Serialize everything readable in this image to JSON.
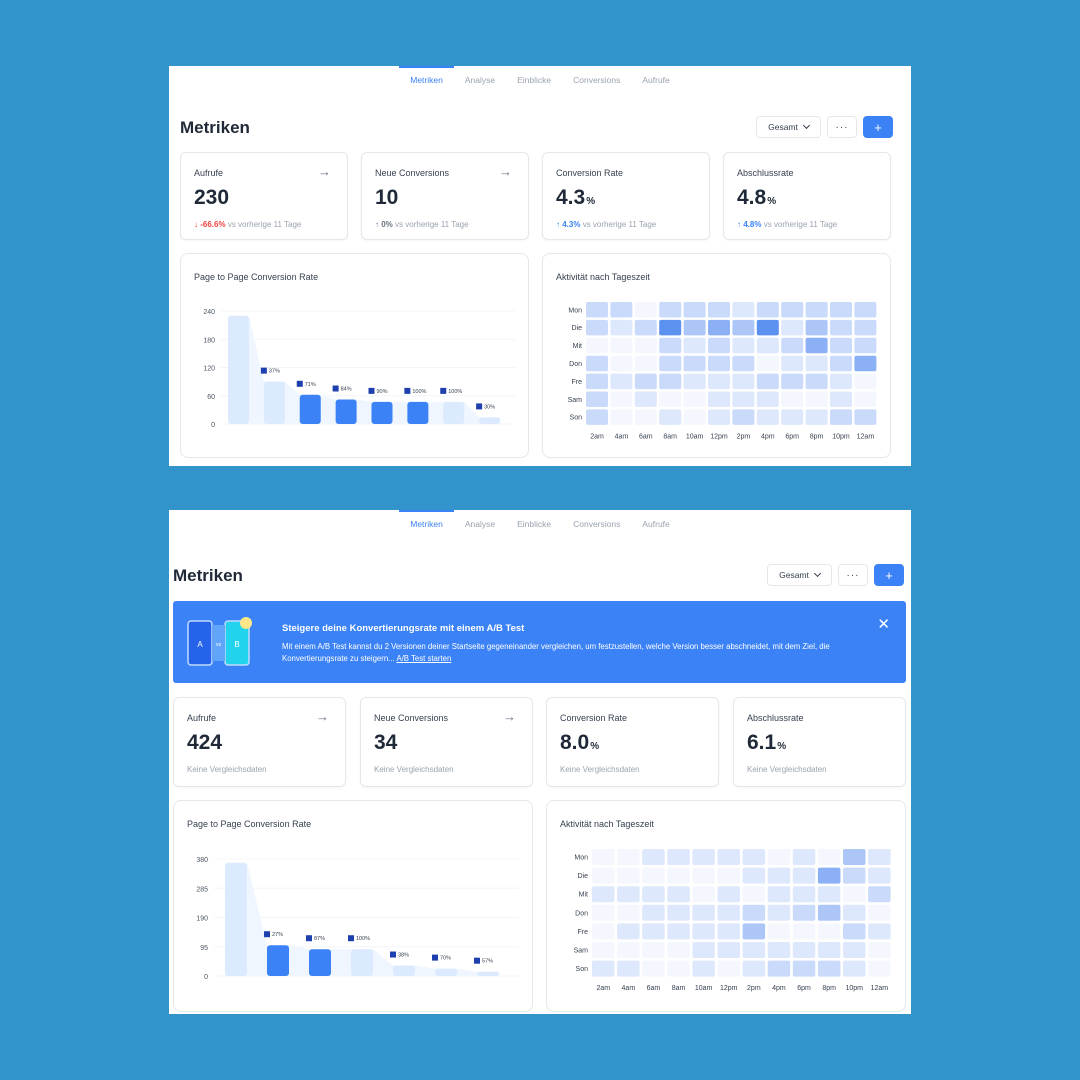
{
  "tabs": [
    "Metriken",
    "Analyse",
    "Einblicke",
    "Conversions",
    "Aufrufe"
  ],
  "page_title": "Metriken",
  "toolbar": {
    "select_label": "Gesamt",
    "more_label": "···",
    "add_label": "+"
  },
  "panel1": {
    "cards": [
      {
        "label": "Aufrufe",
        "value": "230",
        "unit": "",
        "change": "↓ -66.6%",
        "change_type": "down",
        "compare": "vs vorherige 11 Tage",
        "arrow": "→"
      },
      {
        "label": "Neue Conversions",
        "value": "10",
        "unit": "",
        "change": "↑ 0%",
        "change_type": "neu",
        "compare": "vs vorherige 11 Tage",
        "arrow": "→"
      },
      {
        "label": "Conversion Rate",
        "value": "4.3",
        "unit": "%",
        "change": "↑ 4.3%",
        "change_type": "up",
        "compare": "vs vorherige 11 Tage",
        "arrow": ""
      },
      {
        "label": "Abschlussrate",
        "value": "4.8",
        "unit": "%",
        "change": "↑ 4.8%",
        "change_type": "up",
        "compare": "vs vorherige 11 Tage",
        "arrow": ""
      }
    ],
    "bar_title": "Page to Page Conversion Rate",
    "heat_title": "Aktivität nach Tageszeit"
  },
  "panel2": {
    "banner": {
      "title": "Steigere deine Konvertierungsrate mit einem A/B Test",
      "text": "Mit einem A/B Test kannst du 2 Versionen deiner Startseite gegeneinander vergleichen, um festzustellen, welche Version besser abschneidet, mit dem Ziel, die Konvertierungsrate zu steigern...",
      "link": "A/B Test starten",
      "close": "✕",
      "label_a": "A",
      "label_vs": "vs",
      "label_b": "B"
    },
    "cards": [
      {
        "label": "Aufrufe",
        "value": "424",
        "unit": "",
        "compare": "Keine Vergleichsdaten",
        "arrow": "→"
      },
      {
        "label": "Neue Conversions",
        "value": "34",
        "unit": "",
        "compare": "Keine Vergleichsdaten",
        "arrow": "→"
      },
      {
        "label": "Conversion Rate",
        "value": "8.0",
        "unit": "%",
        "compare": "Keine Vergleichsdaten",
        "arrow": ""
      },
      {
        "label": "Abschlussrate",
        "value": "6.1",
        "unit": "%",
        "compare": "Keine Vergleichsdaten",
        "arrow": ""
      }
    ],
    "bar_title": "Page to Page Conversion Rate",
    "heat_title": "Aktivität nach Tageszeit"
  },
  "colors": {
    "accent": "#3b82f6",
    "light_bar": "#dbeafe",
    "negative": "#ef4444"
  },
  "chart_data": [
    {
      "type": "bar",
      "yticks": [
        0,
        60,
        120,
        180,
        240
      ],
      "ylim": [
        0,
        240
      ],
      "values": [
        230,
        90,
        62,
        52,
        47,
        47,
        47,
        14
      ],
      "labels": [
        "",
        "37%",
        "71%",
        "84%",
        "90%",
        "100%",
        "100%",
        "30%"
      ],
      "highlight": [
        false,
        false,
        true,
        true,
        true,
        true,
        false,
        false
      ]
    },
    {
      "type": "heatmap",
      "rows": [
        "Mon",
        "Die",
        "Mit",
        "Don",
        "Fre",
        "Sam",
        "Son"
      ],
      "cols": [
        "2am",
        "4am",
        "6am",
        "8am",
        "10am",
        "12pm",
        "2pm",
        "4pm",
        "6pm",
        "8pm",
        "10pm",
        "12am"
      ],
      "values": [
        [
          2,
          2,
          0,
          2,
          2,
          2,
          1,
          2,
          2,
          2,
          2,
          2
        ],
        [
          2,
          1,
          2,
          5,
          3,
          4,
          3,
          5,
          1,
          3,
          2,
          2
        ],
        [
          0,
          0,
          0,
          2,
          1,
          2,
          1,
          1,
          2,
          4,
          2,
          2
        ],
        [
          2,
          0,
          0,
          2,
          2,
          2,
          2,
          0,
          1,
          1,
          2,
          4
        ],
        [
          2,
          1,
          2,
          2,
          1,
          1,
          1,
          2,
          2,
          2,
          1,
          0
        ],
        [
          2,
          0,
          1,
          0,
          0,
          1,
          1,
          1,
          0,
          0,
          1,
          0
        ],
        [
          2,
          0,
          0,
          1,
          0,
          1,
          2,
          1,
          1,
          1,
          2,
          2
        ]
      ]
    },
    {
      "type": "bar",
      "yticks": [
        0,
        95,
        190,
        285,
        380
      ],
      "ylim": [
        0,
        380
      ],
      "values": [
        368,
        100,
        87,
        87,
        34,
        24,
        14
      ],
      "labels": [
        "",
        "27%",
        "87%",
        "100%",
        "38%",
        "70%",
        "57%"
      ],
      "highlight": [
        false,
        true,
        true,
        false,
        false,
        false,
        false
      ]
    },
    {
      "type": "heatmap",
      "rows": [
        "Mon",
        "Die",
        "Mit",
        "Don",
        "Fre",
        "Sam",
        "Son"
      ],
      "cols": [
        "2am",
        "4am",
        "6am",
        "8am",
        "10am",
        "12pm",
        "2pm",
        "4pm",
        "6pm",
        "8pm",
        "10pm",
        "12am"
      ],
      "values": [
        [
          0,
          0,
          1,
          1,
          1,
          1,
          1,
          0,
          1,
          0,
          3,
          1
        ],
        [
          0,
          0,
          0,
          0,
          0,
          0,
          1,
          1,
          1,
          4,
          2,
          1
        ],
        [
          1,
          1,
          1,
          1,
          0,
          1,
          0,
          1,
          1,
          1,
          0,
          2
        ],
        [
          0,
          0,
          1,
          1,
          1,
          1,
          2,
          1,
          2,
          3,
          1,
          0
        ],
        [
          0,
          1,
          1,
          1,
          1,
          1,
          3,
          0,
          0,
          0,
          2,
          1
        ],
        [
          0,
          0,
          0,
          0,
          1,
          1,
          1,
          1,
          1,
          1,
          1,
          0
        ],
        [
          1,
          1,
          0,
          0,
          1,
          0,
          1,
          2,
          2,
          2,
          1,
          0
        ]
      ]
    }
  ]
}
